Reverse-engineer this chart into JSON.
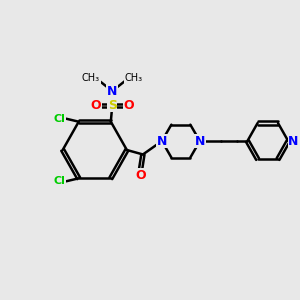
{
  "bg_color": "#e8e8e8",
  "atom_colors": {
    "C": "#000000",
    "N": "#0000ff",
    "O": "#ff0000",
    "S": "#cccc00",
    "Cl": "#00cc00",
    "H": "#000000"
  },
  "bond_color": "#000000",
  "title": "",
  "figsize": [
    3.0,
    3.0
  ],
  "dpi": 100
}
